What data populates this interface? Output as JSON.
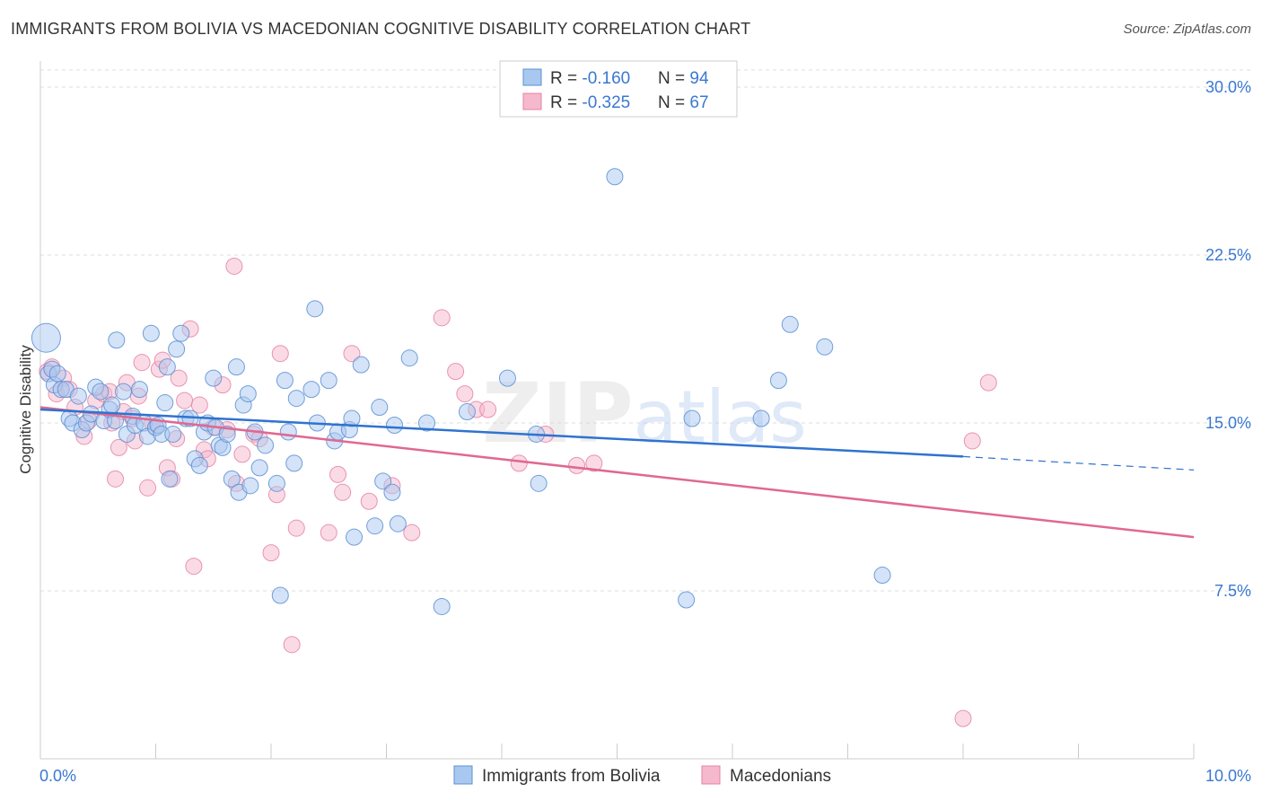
{
  "title": "IMMIGRANTS FROM BOLIVIA VS MACEDONIAN COGNITIVE DISABILITY CORRELATION CHART",
  "source": "Source: ZipAtlas.com",
  "watermark": "ZIPatlas",
  "colors": {
    "blue_fill": "#a9c8f0",
    "blue_stroke": "#5b8fd4",
    "blue_line": "#2f73d0",
    "pink_fill": "#f6b8cc",
    "pink_stroke": "#e583a4",
    "pink_line": "#e06892",
    "tick_text": "#3a78d0",
    "grid": "#dddddd"
  },
  "legend": {
    "rows": [
      {
        "r_label": "R = ",
        "r_value": "-0.160",
        "n_label": "N = ",
        "n_value": "94"
      },
      {
        "r_label": "R = ",
        "r_value": "-0.325",
        "n_label": "N = ",
        "n_value": "67"
      }
    ]
  },
  "chart_data": {
    "type": "scatter",
    "title": "IMMIGRANTS FROM BOLIVIA VS MACEDONIAN COGNITIVE DISABILITY CORRELATION CHART",
    "xlabel": "",
    "ylabel": "Cognitive Disability",
    "xlim": [
      0,
      10
    ],
    "ylim": [
      0,
      31
    ],
    "x_tick_labels": [
      "0.0%",
      "10.0%"
    ],
    "y_ticks": [
      7.5,
      15.0,
      22.5,
      30.0
    ],
    "y_tick_labels": [
      "7.5%",
      "15.0%",
      "22.5%",
      "30.0%"
    ],
    "grid": true,
    "legend_position": "top-center",
    "series": [
      {
        "name": "Immigrants from Bolivia",
        "color": "#a9c8f0",
        "trend": {
          "x": [
            0,
            8.0
          ],
          "y": [
            15.6,
            13.5
          ],
          "dashed_extension": {
            "x": [
              8.0,
              10.0
            ],
            "y": [
              13.5,
              12.9
            ]
          }
        },
        "points": [
          {
            "x": 0.05,
            "y": 18.8,
            "big": true
          },
          {
            "x": 0.07,
            "y": 17.2
          },
          {
            "x": 0.1,
            "y": 17.4
          },
          {
            "x": 0.12,
            "y": 16.7
          },
          {
            "x": 0.15,
            "y": 17.2
          },
          {
            "x": 0.18,
            "y": 16.5
          },
          {
            "x": 0.22,
            "y": 16.5
          },
          {
            "x": 0.25,
            "y": 15.2
          },
          {
            "x": 0.28,
            "y": 15.0
          },
          {
            "x": 0.33,
            "y": 16.2
          },
          {
            "x": 0.36,
            "y": 14.7
          },
          {
            "x": 0.4,
            "y": 15.0
          },
          {
            "x": 0.44,
            "y": 15.4
          },
          {
            "x": 0.48,
            "y": 16.6
          },
          {
            "x": 0.52,
            "y": 16.4
          },
          {
            "x": 0.55,
            "y": 15.1
          },
          {
            "x": 0.6,
            "y": 15.6
          },
          {
            "x": 0.62,
            "y": 15.8
          },
          {
            "x": 0.65,
            "y": 15.1
          },
          {
            "x": 0.66,
            "y": 18.7
          },
          {
            "x": 0.72,
            "y": 16.4
          },
          {
            "x": 0.75,
            "y": 14.5
          },
          {
            "x": 0.8,
            "y": 15.3
          },
          {
            "x": 0.82,
            "y": 14.9
          },
          {
            "x": 0.86,
            "y": 16.5
          },
          {
            "x": 0.9,
            "y": 15.0
          },
          {
            "x": 0.93,
            "y": 14.4
          },
          {
            "x": 0.96,
            "y": 19.0
          },
          {
            "x": 1.0,
            "y": 14.8
          },
          {
            "x": 1.02,
            "y": 14.9
          },
          {
            "x": 1.05,
            "y": 14.5
          },
          {
            "x": 1.08,
            "y": 15.9
          },
          {
            "x": 1.1,
            "y": 17.5
          },
          {
            "x": 1.12,
            "y": 12.5
          },
          {
            "x": 1.15,
            "y": 14.5
          },
          {
            "x": 1.18,
            "y": 18.3
          },
          {
            "x": 1.22,
            "y": 19.0
          },
          {
            "x": 1.26,
            "y": 15.2
          },
          {
            "x": 1.3,
            "y": 15.2
          },
          {
            "x": 1.34,
            "y": 13.4
          },
          {
            "x": 1.38,
            "y": 13.1
          },
          {
            "x": 1.42,
            "y": 14.6
          },
          {
            "x": 1.45,
            "y": 15.0
          },
          {
            "x": 1.5,
            "y": 17.0
          },
          {
            "x": 1.52,
            "y": 14.8
          },
          {
            "x": 1.55,
            "y": 14.0
          },
          {
            "x": 1.58,
            "y": 13.9
          },
          {
            "x": 1.62,
            "y": 14.5
          },
          {
            "x": 1.66,
            "y": 12.5
          },
          {
            "x": 1.7,
            "y": 17.5
          },
          {
            "x": 1.72,
            "y": 11.9
          },
          {
            "x": 1.76,
            "y": 15.8
          },
          {
            "x": 1.8,
            "y": 16.3
          },
          {
            "x": 1.82,
            "y": 12.2
          },
          {
            "x": 1.86,
            "y": 14.6
          },
          {
            "x": 1.9,
            "y": 13.0
          },
          {
            "x": 1.95,
            "y": 14.0
          },
          {
            "x": 2.05,
            "y": 12.3
          },
          {
            "x": 2.08,
            "y": 7.3
          },
          {
            "x": 2.12,
            "y": 16.9
          },
          {
            "x": 2.15,
            "y": 14.6
          },
          {
            "x": 2.2,
            "y": 13.2
          },
          {
            "x": 2.22,
            "y": 16.1
          },
          {
            "x": 2.35,
            "y": 16.5
          },
          {
            "x": 2.38,
            "y": 20.1
          },
          {
            "x": 2.4,
            "y": 15.0
          },
          {
            "x": 2.5,
            "y": 16.9
          },
          {
            "x": 2.55,
            "y": 14.2
          },
          {
            "x": 2.58,
            "y": 14.6
          },
          {
            "x": 2.68,
            "y": 14.7
          },
          {
            "x": 2.7,
            "y": 15.2
          },
          {
            "x": 2.72,
            "y": 9.9
          },
          {
            "x": 2.78,
            "y": 17.6
          },
          {
            "x": 2.9,
            "y": 10.4
          },
          {
            "x": 2.94,
            "y": 15.7
          },
          {
            "x": 2.97,
            "y": 12.4
          },
          {
            "x": 3.05,
            "y": 11.9
          },
          {
            "x": 3.07,
            "y": 14.9
          },
          {
            "x": 3.1,
            "y": 10.5
          },
          {
            "x": 3.2,
            "y": 17.9
          },
          {
            "x": 3.35,
            "y": 15.0
          },
          {
            "x": 3.48,
            "y": 6.8
          },
          {
            "x": 3.7,
            "y": 15.5
          },
          {
            "x": 4.05,
            "y": 17.0
          },
          {
            "x": 4.3,
            "y": 14.5
          },
          {
            "x": 4.32,
            "y": 12.3
          },
          {
            "x": 4.98,
            "y": 26.0
          },
          {
            "x": 5.6,
            "y": 7.1
          },
          {
            "x": 6.25,
            "y": 15.2
          },
          {
            "x": 6.4,
            "y": 16.9
          },
          {
            "x": 6.5,
            "y": 19.4
          },
          {
            "x": 6.8,
            "y": 18.4
          },
          {
            "x": 7.3,
            "y": 8.2
          },
          {
            "x": 5.65,
            "y": 15.2
          }
        ]
      },
      {
        "name": "Macedonians",
        "color": "#f6b8cc",
        "trend": {
          "x": [
            0,
            10.0
          ],
          "y": [
            15.7,
            9.9
          ]
        },
        "points": [
          {
            "x": 0.06,
            "y": 17.3
          },
          {
            "x": 0.1,
            "y": 17.5
          },
          {
            "x": 0.14,
            "y": 16.3
          },
          {
            "x": 0.2,
            "y": 17.0
          },
          {
            "x": 0.25,
            "y": 16.5
          },
          {
            "x": 0.3,
            "y": 15.7
          },
          {
            "x": 0.38,
            "y": 14.4
          },
          {
            "x": 0.42,
            "y": 15.1
          },
          {
            "x": 0.48,
            "y": 16.0
          },
          {
            "x": 0.55,
            "y": 16.3
          },
          {
            "x": 0.6,
            "y": 16.4
          },
          {
            "x": 0.62,
            "y": 15.0
          },
          {
            "x": 0.65,
            "y": 12.5
          },
          {
            "x": 0.68,
            "y": 13.9
          },
          {
            "x": 0.72,
            "y": 15.5
          },
          {
            "x": 0.75,
            "y": 16.8
          },
          {
            "x": 0.8,
            "y": 15.2
          },
          {
            "x": 0.82,
            "y": 14.2
          },
          {
            "x": 0.85,
            "y": 16.2
          },
          {
            "x": 0.88,
            "y": 17.7
          },
          {
            "x": 0.93,
            "y": 12.1
          },
          {
            "x": 0.97,
            "y": 15.0
          },
          {
            "x": 1.0,
            "y": 14.8
          },
          {
            "x": 1.03,
            "y": 17.4
          },
          {
            "x": 1.06,
            "y": 17.8
          },
          {
            "x": 1.1,
            "y": 13.0
          },
          {
            "x": 1.14,
            "y": 12.5
          },
          {
            "x": 1.18,
            "y": 14.3
          },
          {
            "x": 1.2,
            "y": 17.0
          },
          {
            "x": 1.25,
            "y": 16.0
          },
          {
            "x": 1.3,
            "y": 19.2
          },
          {
            "x": 1.33,
            "y": 8.6
          },
          {
            "x": 1.38,
            "y": 15.8
          },
          {
            "x": 1.42,
            "y": 13.8
          },
          {
            "x": 1.45,
            "y": 13.4
          },
          {
            "x": 1.5,
            "y": 14.8
          },
          {
            "x": 1.58,
            "y": 16.7
          },
          {
            "x": 1.62,
            "y": 14.7
          },
          {
            "x": 1.68,
            "y": 22.0
          },
          {
            "x": 1.7,
            "y": 12.3
          },
          {
            "x": 1.75,
            "y": 13.6
          },
          {
            "x": 1.85,
            "y": 14.5
          },
          {
            "x": 1.9,
            "y": 14.3
          },
          {
            "x": 2.0,
            "y": 9.2
          },
          {
            "x": 2.05,
            "y": 11.8
          },
          {
            "x": 2.08,
            "y": 18.1
          },
          {
            "x": 2.18,
            "y": 5.1
          },
          {
            "x": 2.22,
            "y": 10.3
          },
          {
            "x": 2.5,
            "y": 10.1
          },
          {
            "x": 2.58,
            "y": 12.7
          },
          {
            "x": 2.62,
            "y": 11.9
          },
          {
            "x": 2.7,
            "y": 18.1
          },
          {
            "x": 2.85,
            "y": 11.5
          },
          {
            "x": 3.05,
            "y": 12.2
          },
          {
            "x": 3.22,
            "y": 10.1
          },
          {
            "x": 3.48,
            "y": 19.7
          },
          {
            "x": 3.6,
            "y": 17.3
          },
          {
            "x": 3.68,
            "y": 16.3
          },
          {
            "x": 3.78,
            "y": 15.6
          },
          {
            "x": 3.88,
            "y": 15.6
          },
          {
            "x": 4.15,
            "y": 13.2
          },
          {
            "x": 4.38,
            "y": 14.5
          },
          {
            "x": 4.65,
            "y": 13.1
          },
          {
            "x": 4.8,
            "y": 13.2
          },
          {
            "x": 8.08,
            "y": 14.2
          },
          {
            "x": 8.22,
            "y": 16.8
          },
          {
            "x": 8.0,
            "y": 1.8
          }
        ]
      }
    ]
  }
}
